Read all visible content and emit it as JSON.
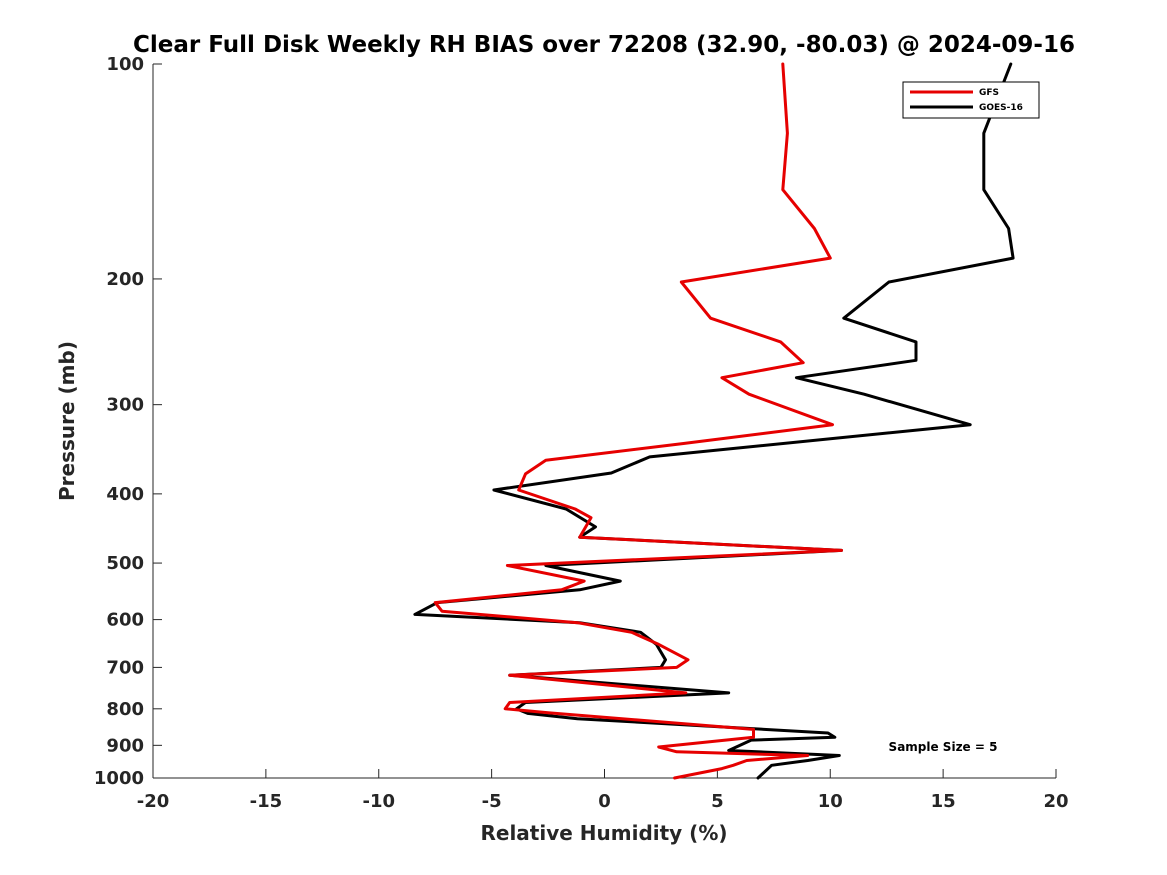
{
  "chart_data": {
    "type": "line",
    "title": "Clear Full Disk Weekly RH BIAS over 72208 (32.90, -80.03) @ 2024-09-16",
    "xlabel": "Relative Humidity (%)",
    "ylabel": "Pressure (mb)",
    "xlim": [
      -20,
      20
    ],
    "ylim": [
      100,
      1000
    ],
    "yscale": "log",
    "y_reversed": true,
    "xticks": [
      -20,
      -15,
      -10,
      -5,
      0,
      5,
      10,
      15,
      20
    ],
    "xtick_labels": [
      "-20",
      "-15",
      "-10",
      "-5",
      "0",
      "5",
      "10",
      "15",
      "20"
    ],
    "yticks": [
      100,
      200,
      300,
      400,
      500,
      600,
      700,
      800,
      900,
      1000
    ],
    "ytick_labels": [
      "100",
      "200",
      "300",
      "400",
      "500",
      "600",
      "700",
      "800",
      "900",
      "1000"
    ],
    "grid": false,
    "legend_position": "top-right",
    "annotation": "Sample Size = 5",
    "series": [
      {
        "name": "GFS",
        "color": "#e60000",
        "points": [
          [
            7.9,
            100
          ],
          [
            8.1,
            125
          ],
          [
            7.9,
            150
          ],
          [
            9.3,
            170
          ],
          [
            10.0,
            187
          ],
          [
            3.4,
            202
          ],
          [
            4.7,
            227
          ],
          [
            7.8,
            245
          ],
          [
            8.8,
            262
          ],
          [
            5.2,
            275
          ],
          [
            6.4,
            290
          ],
          [
            10.1,
            320
          ],
          [
            3.5,
            340
          ],
          [
            -2.6,
            359
          ],
          [
            -3.5,
            375
          ],
          [
            -3.8,
            395
          ],
          [
            -1.3,
            420
          ],
          [
            -0.6,
            432
          ],
          [
            -1.1,
            460
          ],
          [
            10.5,
            480
          ],
          [
            -4.3,
            504
          ],
          [
            -0.9,
            530
          ],
          [
            -1.9,
            545
          ],
          [
            -7.5,
            568
          ],
          [
            -7.2,
            584
          ],
          [
            -1.2,
            606
          ],
          [
            1.2,
            625
          ],
          [
            2.4,
            650
          ],
          [
            3.7,
            683
          ],
          [
            3.2,
            700
          ],
          [
            -4.2,
            718
          ],
          [
            3.6,
            760
          ],
          [
            -4.2,
            784
          ],
          [
            -4.4,
            800
          ],
          [
            -2.5,
            810
          ],
          [
            6.6,
            855
          ],
          [
            6.6,
            877
          ],
          [
            2.4,
            905
          ],
          [
            3.2,
            919
          ],
          [
            9.0,
            930
          ],
          [
            6.3,
            945
          ],
          [
            5.7,
            960
          ],
          [
            5.2,
            970
          ],
          [
            3.1,
            1000
          ]
        ]
      },
      {
        "name": "GOES-16",
        "color": "#000000",
        "points": [
          [
            18.0,
            100
          ],
          [
            16.8,
            125
          ],
          [
            16.8,
            150
          ],
          [
            17.9,
            170
          ],
          [
            18.1,
            187
          ],
          [
            12.6,
            202
          ],
          [
            10.6,
            227
          ],
          [
            13.8,
            245
          ],
          [
            13.8,
            260
          ],
          [
            8.5,
            275
          ],
          [
            11.5,
            290
          ],
          [
            16.2,
            320
          ],
          [
            2.0,
            355
          ],
          [
            0.3,
            374
          ],
          [
            -4.9,
            395
          ],
          [
            -1.7,
            420
          ],
          [
            -0.4,
            445
          ],
          [
            -1.1,
            460
          ],
          [
            10.5,
            480
          ],
          [
            -2.6,
            504
          ],
          [
            0.7,
            530
          ],
          [
            -1.1,
            545
          ],
          [
            -7.4,
            568
          ],
          [
            -8.4,
            590
          ],
          [
            -1.1,
            606
          ],
          [
            1.6,
            625
          ],
          [
            2.3,
            650
          ],
          [
            2.7,
            683
          ],
          [
            2.5,
            700
          ],
          [
            -4.2,
            718
          ],
          [
            5.5,
            760
          ],
          [
            -3.5,
            784
          ],
          [
            -3.9,
            800
          ],
          [
            -3.4,
            812
          ],
          [
            -1.2,
            826
          ],
          [
            9.9,
            865
          ],
          [
            10.2,
            877
          ],
          [
            6.5,
            885
          ],
          [
            5.5,
            915
          ],
          [
            10.4,
            930
          ],
          [
            9.0,
            945
          ],
          [
            7.4,
            960
          ],
          [
            6.8,
            1000
          ]
        ]
      }
    ]
  }
}
